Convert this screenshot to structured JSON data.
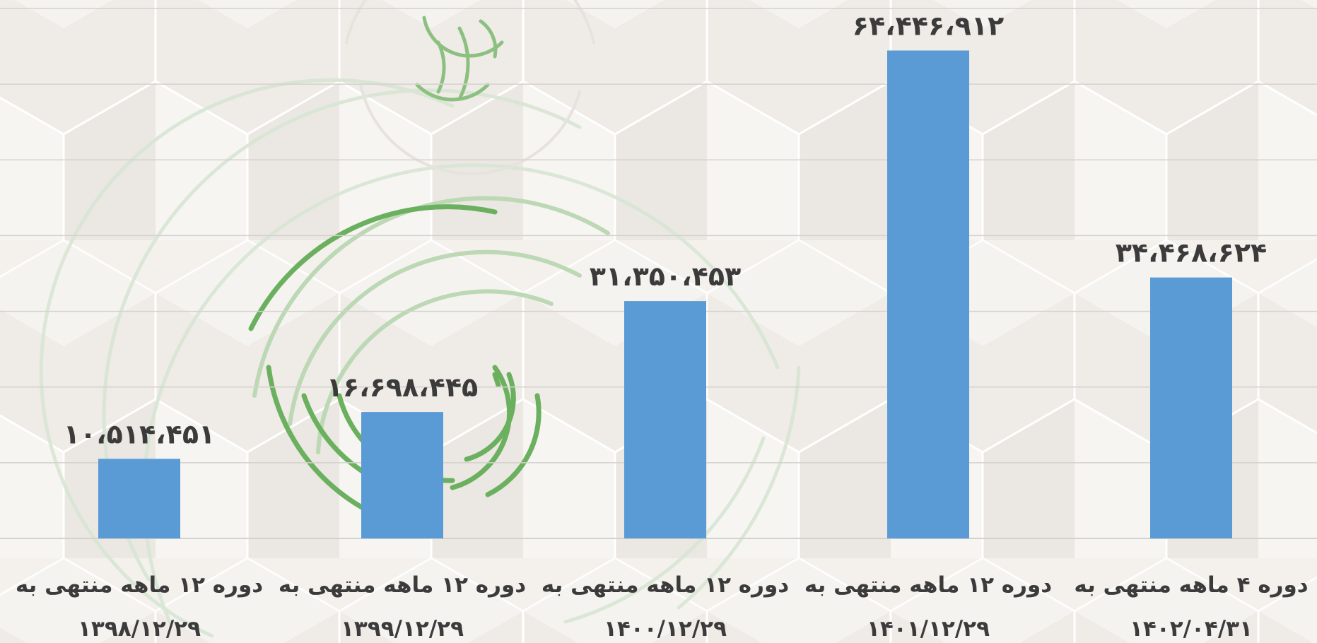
{
  "chart_data": {
    "type": "bar",
    "categories": [
      [
        "دوره ۱۲ ماهه منتهی به",
        "۱۳۹۸/۱۲/۲۹"
      ],
      [
        "دوره ۱۲ ماهه منتهی به",
        "۱۳۹۹/۱۲/۲۹"
      ],
      [
        "دوره ۱۲ ماهه منتهی به",
        "۱۴۰۰/۱۲/۲۹"
      ],
      [
        "دوره ۱۲ ماهه منتهی به",
        "۱۴۰۱/۱۲/۲۹"
      ],
      [
        "دوره ۴ ماهه منتهی به",
        "۱۴۰۲/۰۴/۳۱"
      ]
    ],
    "values": [
      10514451,
      16698445,
      31350453,
      64446912,
      34468624
    ],
    "value_labels": [
      "۱۰،۵۱۴،۴۵۱",
      "۱۶،۶۹۸،۴۴۵",
      "۳۱،۳۵۰،۴۵۳",
      "۶۴،۴۴۶،۹۱۲",
      "۳۴،۴۶۸،۶۲۴"
    ],
    "ylim": [
      0,
      70000000
    ],
    "grid": true,
    "colors": {
      "bar": "#5b9bd5",
      "grid": "#d4d1cd",
      "text": "#3b3b3b",
      "watermark": "#5aa54a"
    }
  }
}
